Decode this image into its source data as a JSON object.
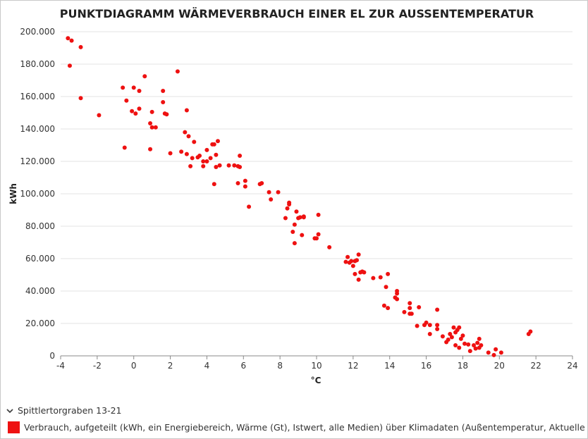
{
  "chart_data": {
    "type": "scatter",
    "title": "PUNKTDIAGRAMM WÄRMEVERBRAUCH EINER EL ZUR AUSSENTEMPERATUR",
    "xlabel": "°C",
    "ylabel": "kWh",
    "xlim": [
      -4,
      24
    ],
    "ylim": [
      0,
      200000
    ],
    "x_ticks": [
      "-4",
      "-2",
      "0",
      "2",
      "4",
      "6",
      "8",
      "10",
      "12",
      "14",
      "16",
      "18",
      "20",
      "22",
      "24"
    ],
    "y_ticks": [
      "0",
      "20.000",
      "40.000",
      "60.000",
      "80.000",
      "100.000",
      "120.000",
      "140.000",
      "160.000",
      "180.000",
      "200.000"
    ],
    "grid": true,
    "legend_position": "bottom",
    "series": [
      {
        "name": "Verbrauch, aufgeteilt (kWh, ein Energiebereich, Wärme (Gt), Istwert, alle Medien) über Klimadaten (Außentemperatur, Aktuelle Wert",
        "color": "#ee1111",
        "points": [
          [
            -3.6,
            196000
          ],
          [
            -3.4,
            194500
          ],
          [
            -2.9,
            190500
          ],
          [
            -3.5,
            179000
          ],
          [
            -2.9,
            159000
          ],
          [
            -1.9,
            148500
          ],
          [
            -0.6,
            165500
          ],
          [
            -0.4,
            157500
          ],
          [
            -0.5,
            128500
          ],
          [
            0.0,
            165500
          ],
          [
            0.3,
            163500
          ],
          [
            0.6,
            172500
          ],
          [
            -0.1,
            151000
          ],
          [
            0.1,
            149500
          ],
          [
            0.3,
            152500
          ],
          [
            0.9,
            143500
          ],
          [
            1.0,
            141000
          ],
          [
            1.2,
            141000
          ],
          [
            1.0,
            150500
          ],
          [
            0.9,
            127500
          ],
          [
            1.6,
            163500
          ],
          [
            1.6,
            156500
          ],
          [
            1.7,
            149500
          ],
          [
            1.8,
            149000
          ],
          [
            2.4,
            175500
          ],
          [
            2.9,
            151500
          ],
          [
            2.8,
            138000
          ],
          [
            3.0,
            135500
          ],
          [
            3.3,
            132000
          ],
          [
            2.0,
            125000
          ],
          [
            2.6,
            126000
          ],
          [
            2.9,
            124500
          ],
          [
            3.2,
            122000
          ],
          [
            3.5,
            122500
          ],
          [
            3.6,
            123500
          ],
          [
            3.1,
            117000
          ],
          [
            3.8,
            120000
          ],
          [
            3.8,
            117000
          ],
          [
            4.0,
            120000
          ],
          [
            4.0,
            127000
          ],
          [
            4.2,
            122000
          ],
          [
            4.3,
            130500
          ],
          [
            4.4,
            130500
          ],
          [
            4.5,
            124000
          ],
          [
            4.6,
            132500
          ],
          [
            4.5,
            116500
          ],
          [
            4.7,
            117500
          ],
          [
            4.4,
            106000
          ],
          [
            5.2,
            117500
          ],
          [
            5.5,
            117500
          ],
          [
            5.7,
            117000
          ],
          [
            5.8,
            123500
          ],
          [
            5.8,
            116500
          ],
          [
            5.7,
            106500
          ],
          [
            6.1,
            108000
          ],
          [
            6.1,
            104500
          ],
          [
            6.3,
            92000
          ],
          [
            6.9,
            106000
          ],
          [
            7.0,
            106500
          ],
          [
            7.4,
            101000
          ],
          [
            7.5,
            96500
          ],
          [
            7.9,
            101000
          ],
          [
            8.3,
            85000
          ],
          [
            8.4,
            91000
          ],
          [
            8.5,
            94500
          ],
          [
            8.5,
            93500
          ],
          [
            8.7,
            76500
          ],
          [
            8.8,
            69500
          ],
          [
            8.8,
            81000
          ],
          [
            8.9,
            89000
          ],
          [
            9.0,
            85000
          ],
          [
            9.1,
            85500
          ],
          [
            9.3,
            86000
          ],
          [
            9.2,
            74500
          ],
          [
            9.3,
            85500
          ],
          [
            9.9,
            72500
          ],
          [
            10.0,
            72500
          ],
          [
            10.1,
            75000
          ],
          [
            10.1,
            87000
          ],
          [
            10.7,
            67000
          ],
          [
            11.6,
            58000
          ],
          [
            11.7,
            61000
          ],
          [
            11.8,
            57500
          ],
          [
            11.9,
            58500
          ],
          [
            12.0,
            55500
          ],
          [
            12.1,
            58500
          ],
          [
            12.1,
            50500
          ],
          [
            12.2,
            59000
          ],
          [
            12.3,
            62500
          ],
          [
            12.3,
            47000
          ],
          [
            12.4,
            51500
          ],
          [
            12.5,
            52000
          ],
          [
            12.6,
            51500
          ],
          [
            13.1,
            48000
          ],
          [
            13.5,
            48500
          ],
          [
            13.8,
            42500
          ],
          [
            13.9,
            50500
          ],
          [
            13.7,
            31000
          ],
          [
            13.9,
            29500
          ],
          [
            14.3,
            36000
          ],
          [
            14.4,
            38500
          ],
          [
            14.4,
            40000
          ],
          [
            14.4,
            35000
          ],
          [
            14.8,
            27000
          ],
          [
            15.1,
            32500
          ],
          [
            15.1,
            29500
          ],
          [
            15.1,
            26000
          ],
          [
            15.2,
            26000
          ],
          [
            15.5,
            18500
          ],
          [
            15.6,
            30000
          ],
          [
            15.9,
            19000
          ],
          [
            16.0,
            20500
          ],
          [
            16.2,
            19000
          ],
          [
            16.2,
            13500
          ],
          [
            16.6,
            28500
          ],
          [
            16.6,
            19000
          ],
          [
            16.6,
            16500
          ],
          [
            16.9,
            12000
          ],
          [
            17.1,
            8500
          ],
          [
            17.2,
            10000
          ],
          [
            17.3,
            13500
          ],
          [
            17.4,
            11500
          ],
          [
            17.5,
            17500
          ],
          [
            17.6,
            14500
          ],
          [
            17.6,
            6500
          ],
          [
            17.7,
            16000
          ],
          [
            17.8,
            17500
          ],
          [
            17.8,
            5000
          ],
          [
            17.9,
            10500
          ],
          [
            18.0,
            12500
          ],
          [
            18.1,
            7500
          ],
          [
            18.3,
            7000
          ],
          [
            18.4,
            3000
          ],
          [
            18.6,
            6500
          ],
          [
            18.7,
            4500
          ],
          [
            18.8,
            8000
          ],
          [
            18.9,
            10500
          ],
          [
            18.9,
            5000
          ],
          [
            19.0,
            6500
          ],
          [
            19.4,
            2000
          ],
          [
            19.7,
            500
          ],
          [
            19.8,
            4000
          ],
          [
            20.1,
            2000
          ],
          [
            21.6,
            13500
          ],
          [
            21.7,
            15000
          ]
        ]
      }
    ]
  },
  "legend": {
    "group_label": "Spittlertorgraben 13-21"
  }
}
